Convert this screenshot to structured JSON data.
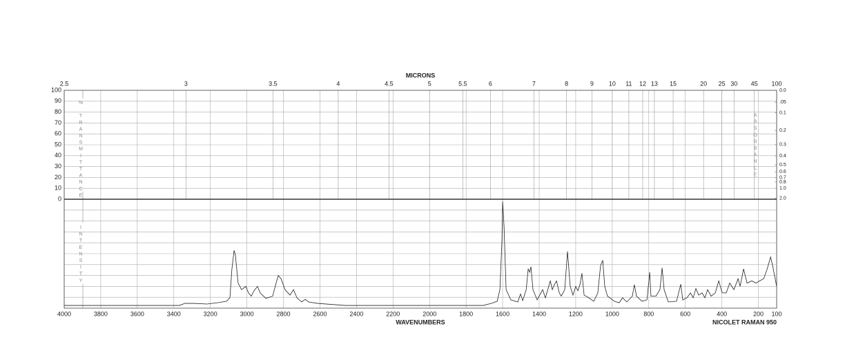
{
  "chart_data": {
    "type": "line",
    "x_label": "WAVENUMBERS",
    "x2_label": "MICRONS",
    "instrument": "NICOLET RAMAN 950",
    "intensity_label": "INTENSITY",
    "xlim": [
      4000,
      100
    ],
    "xticks": [
      4000,
      3800,
      3600,
      3400,
      3200,
      3000,
      2800,
      2600,
      2400,
      2200,
      2000,
      1800,
      1600,
      1400,
      1200,
      1000,
      800,
      600,
      400,
      200,
      100
    ],
    "x2ticks": [
      2.5,
      3,
      3.5,
      4,
      4.5,
      5,
      5.5,
      6,
      7,
      8,
      9,
      10,
      11,
      12,
      13,
      15,
      20,
      25,
      30,
      45,
      100
    ],
    "ylim": [
      0,
      100
    ],
    "grid": true,
    "transmittance": {
      "label": "% TRANSMITTANCE",
      "ylim": [
        0,
        100
      ],
      "yticks": [
        0,
        10,
        20,
        30,
        40,
        50,
        60,
        70,
        80,
        90,
        100
      ]
    },
    "absorbance": {
      "label": "ABSORBANCE",
      "ticks": [
        {
          "value": 0,
          "label": "0.0"
        },
        {
          "value": 0.05,
          "label": ".05"
        },
        0.1,
        0.2,
        0.3,
        0.4,
        0.5,
        0.6,
        0.7,
        0.8,
        {
          "value": 1,
          "label": "1.0"
        },
        {
          "value": 2,
          "label": "2.0"
        }
      ]
    },
    "series": [
      {
        "color": "#222",
        "x": [
          4000,
          3369,
          3339,
          3293,
          3218,
          3161,
          3112,
          3093,
          3082,
          3070,
          3063,
          3048,
          3029,
          3006,
          2991,
          2976,
          2961,
          2942,
          2927,
          2896,
          2859,
          2840,
          2828,
          2813,
          2791,
          2764,
          2745,
          2726,
          2700,
          2681,
          2662,
          2613,
          2462,
          1706,
          1661,
          1630,
          1615,
          1604,
          1600,
          1592,
          1581,
          1555,
          1517,
          1502,
          1490,
          1471,
          1460,
          1452,
          1445,
          1434,
          1411,
          1381,
          1366,
          1339,
          1328,
          1317,
          1305,
          1290,
          1279,
          1260,
          1245,
          1230,
          1215,
          1200,
          1188,
          1177,
          1166,
          1154,
          1128,
          1101,
          1079,
          1064,
          1052,
          1041,
          1026,
          988,
          962,
          943,
          920,
          890,
          879,
          867,
          837,
          810,
          795,
          788,
          761,
          739,
          727,
          716,
          693,
          648,
          625,
          614,
          591,
          572,
          557,
          542,
          527,
          508,
          493,
          478,
          459,
          436,
          417,
          398,
          376,
          357,
          334,
          311,
          300,
          281,
          262,
          236,
          213,
          194,
          171,
          152,
          133,
          122,
          100
        ],
        "values": [
          2.5,
          2.5,
          4.4,
          4.4,
          3.8,
          5,
          6.3,
          9.5,
          36,
          53,
          49,
          23,
          17,
          20,
          14,
          11,
          16,
          20,
          14,
          9,
          11,
          23,
          30,
          27,
          17,
          12,
          17,
          9.5,
          5.7,
          8,
          5.7,
          4.4,
          2.5,
          2.5,
          4.4,
          6.3,
          17,
          61,
          98,
          74,
          17,
          7.6,
          5.7,
          13,
          7,
          17,
          36,
          33,
          38,
          17,
          7.6,
          17,
          9.5,
          25,
          17,
          21.5,
          25,
          14,
          11,
          17,
          52,
          20,
          12,
          20,
          16,
          21.5,
          32,
          12,
          9.5,
          6.3,
          14,
          39,
          44,
          20,
          11,
          6.3,
          5,
          9.5,
          5.7,
          11,
          21.5,
          11,
          6.3,
          7.6,
          33,
          11,
          11,
          17,
          37,
          17,
          5.7,
          6.3,
          22,
          7.6,
          9.5,
          14,
          9.5,
          18,
          12,
          14,
          9.5,
          17,
          11,
          14,
          25,
          14,
          14,
          23,
          17,
          27,
          20,
          36,
          23,
          25,
          23,
          25,
          27,
          36,
          47,
          39,
          20
        ]
      }
    ]
  }
}
